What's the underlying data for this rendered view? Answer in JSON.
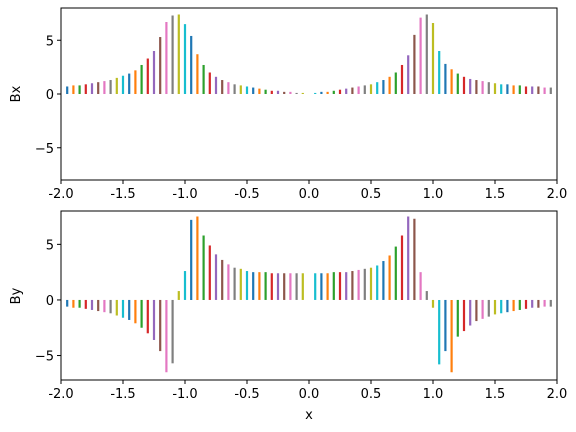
{
  "chart_data": [
    {
      "type": "bar",
      "ylabel": "Bx",
      "xlabel": "",
      "xlim": [
        -2.0,
        2.0
      ],
      "ylim": [
        -8.0,
        8.0
      ],
      "xticks": [
        "-2.0",
        "-1.5",
        "-1.0",
        "-0.5",
        "0.0",
        "0.5",
        "1.0",
        "1.5",
        "2.0"
      ],
      "yticks": [
        "5",
        "0",
        "−5"
      ],
      "grid": false,
      "x": [
        -1.95,
        -1.9,
        -1.85,
        -1.8,
        -1.75,
        -1.7,
        -1.65,
        -1.6,
        -1.55,
        -1.5,
        -1.45,
        -1.4,
        -1.35,
        -1.3,
        -1.25,
        -1.2,
        -1.15,
        -1.1,
        -1.05,
        -1.0,
        -0.95,
        -0.9,
        -0.85,
        -0.8,
        -0.75,
        -0.7,
        -0.65,
        -0.6,
        -0.55,
        -0.5,
        -0.45,
        -0.4,
        -0.35,
        -0.3,
        -0.25,
        -0.2,
        -0.15,
        -0.1,
        -0.05,
        0.05,
        0.1,
        0.15,
        0.2,
        0.25,
        0.3,
        0.35,
        0.4,
        0.45,
        0.5,
        0.55,
        0.6,
        0.65,
        0.7,
        0.75,
        0.8,
        0.85,
        0.9,
        0.95,
        1.0,
        1.05,
        1.1,
        1.15,
        1.2,
        1.25,
        1.3,
        1.35,
        1.4,
        1.45,
        1.5,
        1.55,
        1.6,
        1.65,
        1.7,
        1.75,
        1.8,
        1.85,
        1.9,
        1.95
      ],
      "values": [
        0.7,
        0.8,
        0.8,
        0.9,
        1.0,
        1.1,
        1.2,
        1.3,
        1.5,
        1.7,
        1.9,
        2.2,
        2.7,
        3.3,
        4.0,
        5.3,
        6.7,
        7.3,
        7.4,
        6.5,
        5.4,
        3.7,
        2.7,
        2.0,
        1.6,
        1.3,
        1.1,
        0.9,
        0.8,
        0.7,
        0.6,
        0.5,
        0.4,
        0.3,
        0.3,
        0.2,
        0.2,
        0.1,
        0.1,
        0.1,
        0.2,
        0.2,
        0.3,
        0.4,
        0.5,
        0.6,
        0.7,
        0.8,
        0.9,
        1.1,
        1.3,
        1.6,
        2.0,
        2.7,
        3.6,
        5.5,
        7.1,
        7.4,
        6.6,
        4.0,
        2.8,
        2.3,
        1.9,
        1.6,
        1.4,
        1.3,
        1.2,
        1.1,
        1.0,
        0.9,
        0.9,
        0.8,
        0.8,
        0.7,
        0.7,
        0.7,
        0.6,
        0.6
      ]
    },
    {
      "type": "bar",
      "ylabel": "By",
      "xlabel": "x",
      "xlim": [
        -2.0,
        2.0
      ],
      "ylim": [
        -7.2,
        8.0
      ],
      "xticks": [
        "-2.0",
        "-1.5",
        "-1.0",
        "-0.5",
        "0.0",
        "0.5",
        "1.0",
        "1.5",
        "2.0"
      ],
      "yticks": [
        "5",
        "0",
        "−5"
      ],
      "grid": false,
      "x": [
        -1.95,
        -1.9,
        -1.85,
        -1.8,
        -1.75,
        -1.7,
        -1.65,
        -1.6,
        -1.55,
        -1.5,
        -1.45,
        -1.4,
        -1.35,
        -1.3,
        -1.25,
        -1.2,
        -1.15,
        -1.1,
        -1.05,
        -1.0,
        -0.95,
        -0.9,
        -0.85,
        -0.8,
        -0.75,
        -0.7,
        -0.65,
        -0.6,
        -0.55,
        -0.5,
        -0.45,
        -0.4,
        -0.35,
        -0.3,
        -0.25,
        -0.2,
        -0.15,
        -0.1,
        -0.05,
        0.05,
        0.1,
        0.15,
        0.2,
        0.25,
        0.3,
        0.35,
        0.4,
        0.45,
        0.5,
        0.55,
        0.6,
        0.65,
        0.7,
        0.75,
        0.8,
        0.85,
        0.9,
        0.95,
        1.0,
        1.05,
        1.1,
        1.15,
        1.2,
        1.25,
        1.3,
        1.35,
        1.4,
        1.45,
        1.5,
        1.55,
        1.6,
        1.65,
        1.7,
        1.75,
        1.8,
        1.85,
        1.9,
        1.95
      ],
      "values": [
        -0.6,
        -0.7,
        -0.7,
        -0.8,
        -0.9,
        -1.0,
        -1.1,
        -1.2,
        -1.4,
        -1.6,
        -1.8,
        -2.1,
        -2.5,
        -3.0,
        -3.6,
        -4.6,
        -6.5,
        -5.7,
        0.8,
        2.6,
        7.2,
        7.5,
        5.8,
        4.9,
        4.1,
        3.6,
        3.2,
        2.9,
        2.8,
        2.6,
        2.5,
        2.5,
        2.5,
        2.4,
        2.4,
        2.4,
        2.4,
        2.4,
        2.4,
        2.4,
        2.4,
        2.4,
        2.5,
        2.5,
        2.5,
        2.6,
        2.7,
        2.8,
        2.9,
        3.1,
        3.5,
        4.0,
        4.8,
        5.8,
        7.5,
        7.3,
        2.5,
        0.8,
        -0.7,
        -5.8,
        -4.6,
        -6.5,
        -3.3,
        -2.8,
        -2.3,
        -1.9,
        -1.7,
        -1.5,
        -1.3,
        -1.2,
        -1.1,
        -1.0,
        -0.9,
        -0.8,
        -0.7,
        -0.7,
        -0.6,
        -0.6
      ]
    }
  ],
  "colors": [
    "#1f77b4",
    "#ff7f0e",
    "#2ca02c",
    "#d62728",
    "#9467bd",
    "#8c564b",
    "#e377c2",
    "#7f7f7f",
    "#bcbd22",
    "#17becf"
  ]
}
